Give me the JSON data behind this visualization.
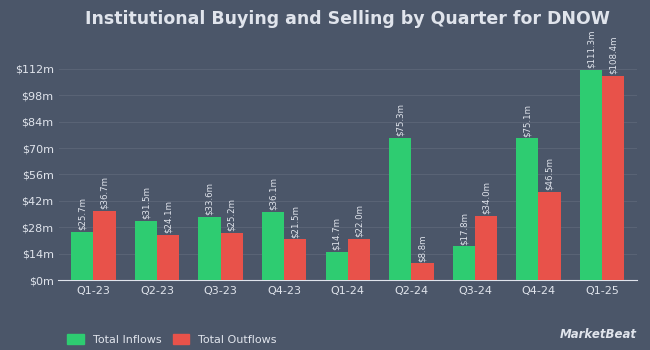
{
  "title": "Institutional Buying and Selling by Quarter for DNOW",
  "quarters": [
    "Q1-23",
    "Q2-23",
    "Q3-23",
    "Q4-23",
    "Q1-24",
    "Q2-24",
    "Q3-24",
    "Q4-24",
    "Q1-25"
  ],
  "inflows": [
    25.7,
    31.5,
    33.6,
    36.1,
    14.7,
    75.3,
    17.8,
    75.1,
    111.3
  ],
  "outflows": [
    36.7,
    24.1,
    25.2,
    21.5,
    22.0,
    8.8,
    34.0,
    46.5,
    108.4
  ],
  "inflow_labels": [
    "$25.7m",
    "$31.5m",
    "$33.6m",
    "$36.1m",
    "$14.7m",
    "$75.3m",
    "$17.8m",
    "$75.1m",
    "$111.3m"
  ],
  "outflow_labels": [
    "$36.7m",
    "$24.1m",
    "$25.2m",
    "$21.5m",
    "$22.0m",
    "$8.8m",
    "$34.0m",
    "$46.5m",
    "$108.4m"
  ],
  "inflow_color": "#2ecc71",
  "outflow_color": "#e8524a",
  "background_color": "#4b5669",
  "plot_bg_color": "#4b5669",
  "text_color": "#e0e4ec",
  "grid_color": "#5c6678",
  "yticks": [
    0,
    14,
    28,
    42,
    56,
    70,
    84,
    98,
    112
  ],
  "ytick_labels": [
    "$0m",
    "$14m",
    "$28m",
    "$42m",
    "$56m",
    "$70m",
    "$84m",
    "$98m",
    "$112m"
  ],
  "legend_inflow": "Total Inflows",
  "legend_outflow": "Total Outflows",
  "bar_width": 0.35,
  "label_fontsize": 6.2,
  "title_fontsize": 12.5,
  "tick_fontsize": 8
}
